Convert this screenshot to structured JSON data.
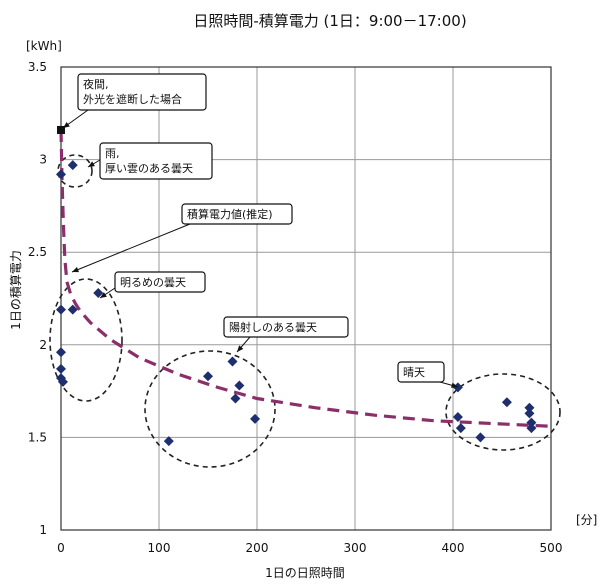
{
  "chart_data": {
    "type": "scatter",
    "title": "日照時間-積算電力 (1日：9:00－17:00)",
    "xlabel": "1日の日照時間",
    "ylabel": "1日の積算電力",
    "x_unit": "[分]",
    "y_unit": "[kWh]",
    "xlim": [
      0,
      500
    ],
    "ylim": [
      1,
      3.5
    ],
    "x_ticks": [
      "0",
      "100",
      "200",
      "300",
      "400",
      "500"
    ],
    "y_ticks": [
      "1",
      "1.5",
      "2",
      "2.5",
      "3",
      "3.5"
    ],
    "grid": true,
    "colors": {
      "points": "#1f2f6e",
      "fit_curve": "#8b2f6a",
      "night_point": "#111111"
    },
    "series": [
      {
        "x": [
          0,
          0,
          0,
          0,
          0,
          2,
          12,
          12,
          38,
          110,
          150,
          175,
          178,
          182,
          198,
          405,
          405,
          408,
          428,
          455,
          478,
          478,
          480,
          480
        ],
        "y": [
          2.92,
          2.19,
          1.96,
          1.87,
          1.82,
          1.8,
          2.97,
          2.19,
          2.28,
          1.48,
          1.83,
          1.91,
          1.71,
          1.78,
          1.6,
          1.77,
          1.61,
          1.55,
          1.5,
          1.69,
          1.66,
          1.63,
          1.58,
          1.55
        ]
      }
    ],
    "night_point": {
      "x": 0,
      "y": 3.16
    },
    "fit_curve": {
      "x": [
        0,
        1,
        2,
        3,
        4,
        6,
        10,
        15,
        20,
        30,
        50,
        80,
        120,
        160,
        200,
        260,
        320,
        380,
        440,
        500
      ],
      "y": [
        3.16,
        2.9,
        2.72,
        2.58,
        2.46,
        2.34,
        2.27,
        2.22,
        2.18,
        2.12,
        2.03,
        1.93,
        1.84,
        1.77,
        1.71,
        1.66,
        1.62,
        1.59,
        1.575,
        1.56
      ]
    },
    "annotations": [
      {
        "lines": [
          "夜間,",
          "外光を遮断した場合"
        ]
      },
      {
        "lines": [
          "雨,",
          "厚い雲のある曇天"
        ]
      },
      {
        "lines": [
          "積算電力値(推定)"
        ]
      },
      {
        "lines": [
          "明るめの曇天"
        ]
      },
      {
        "lines": [
          "陽射しのある曇天"
        ]
      },
      {
        "lines": [
          "晴天"
        ]
      }
    ]
  }
}
